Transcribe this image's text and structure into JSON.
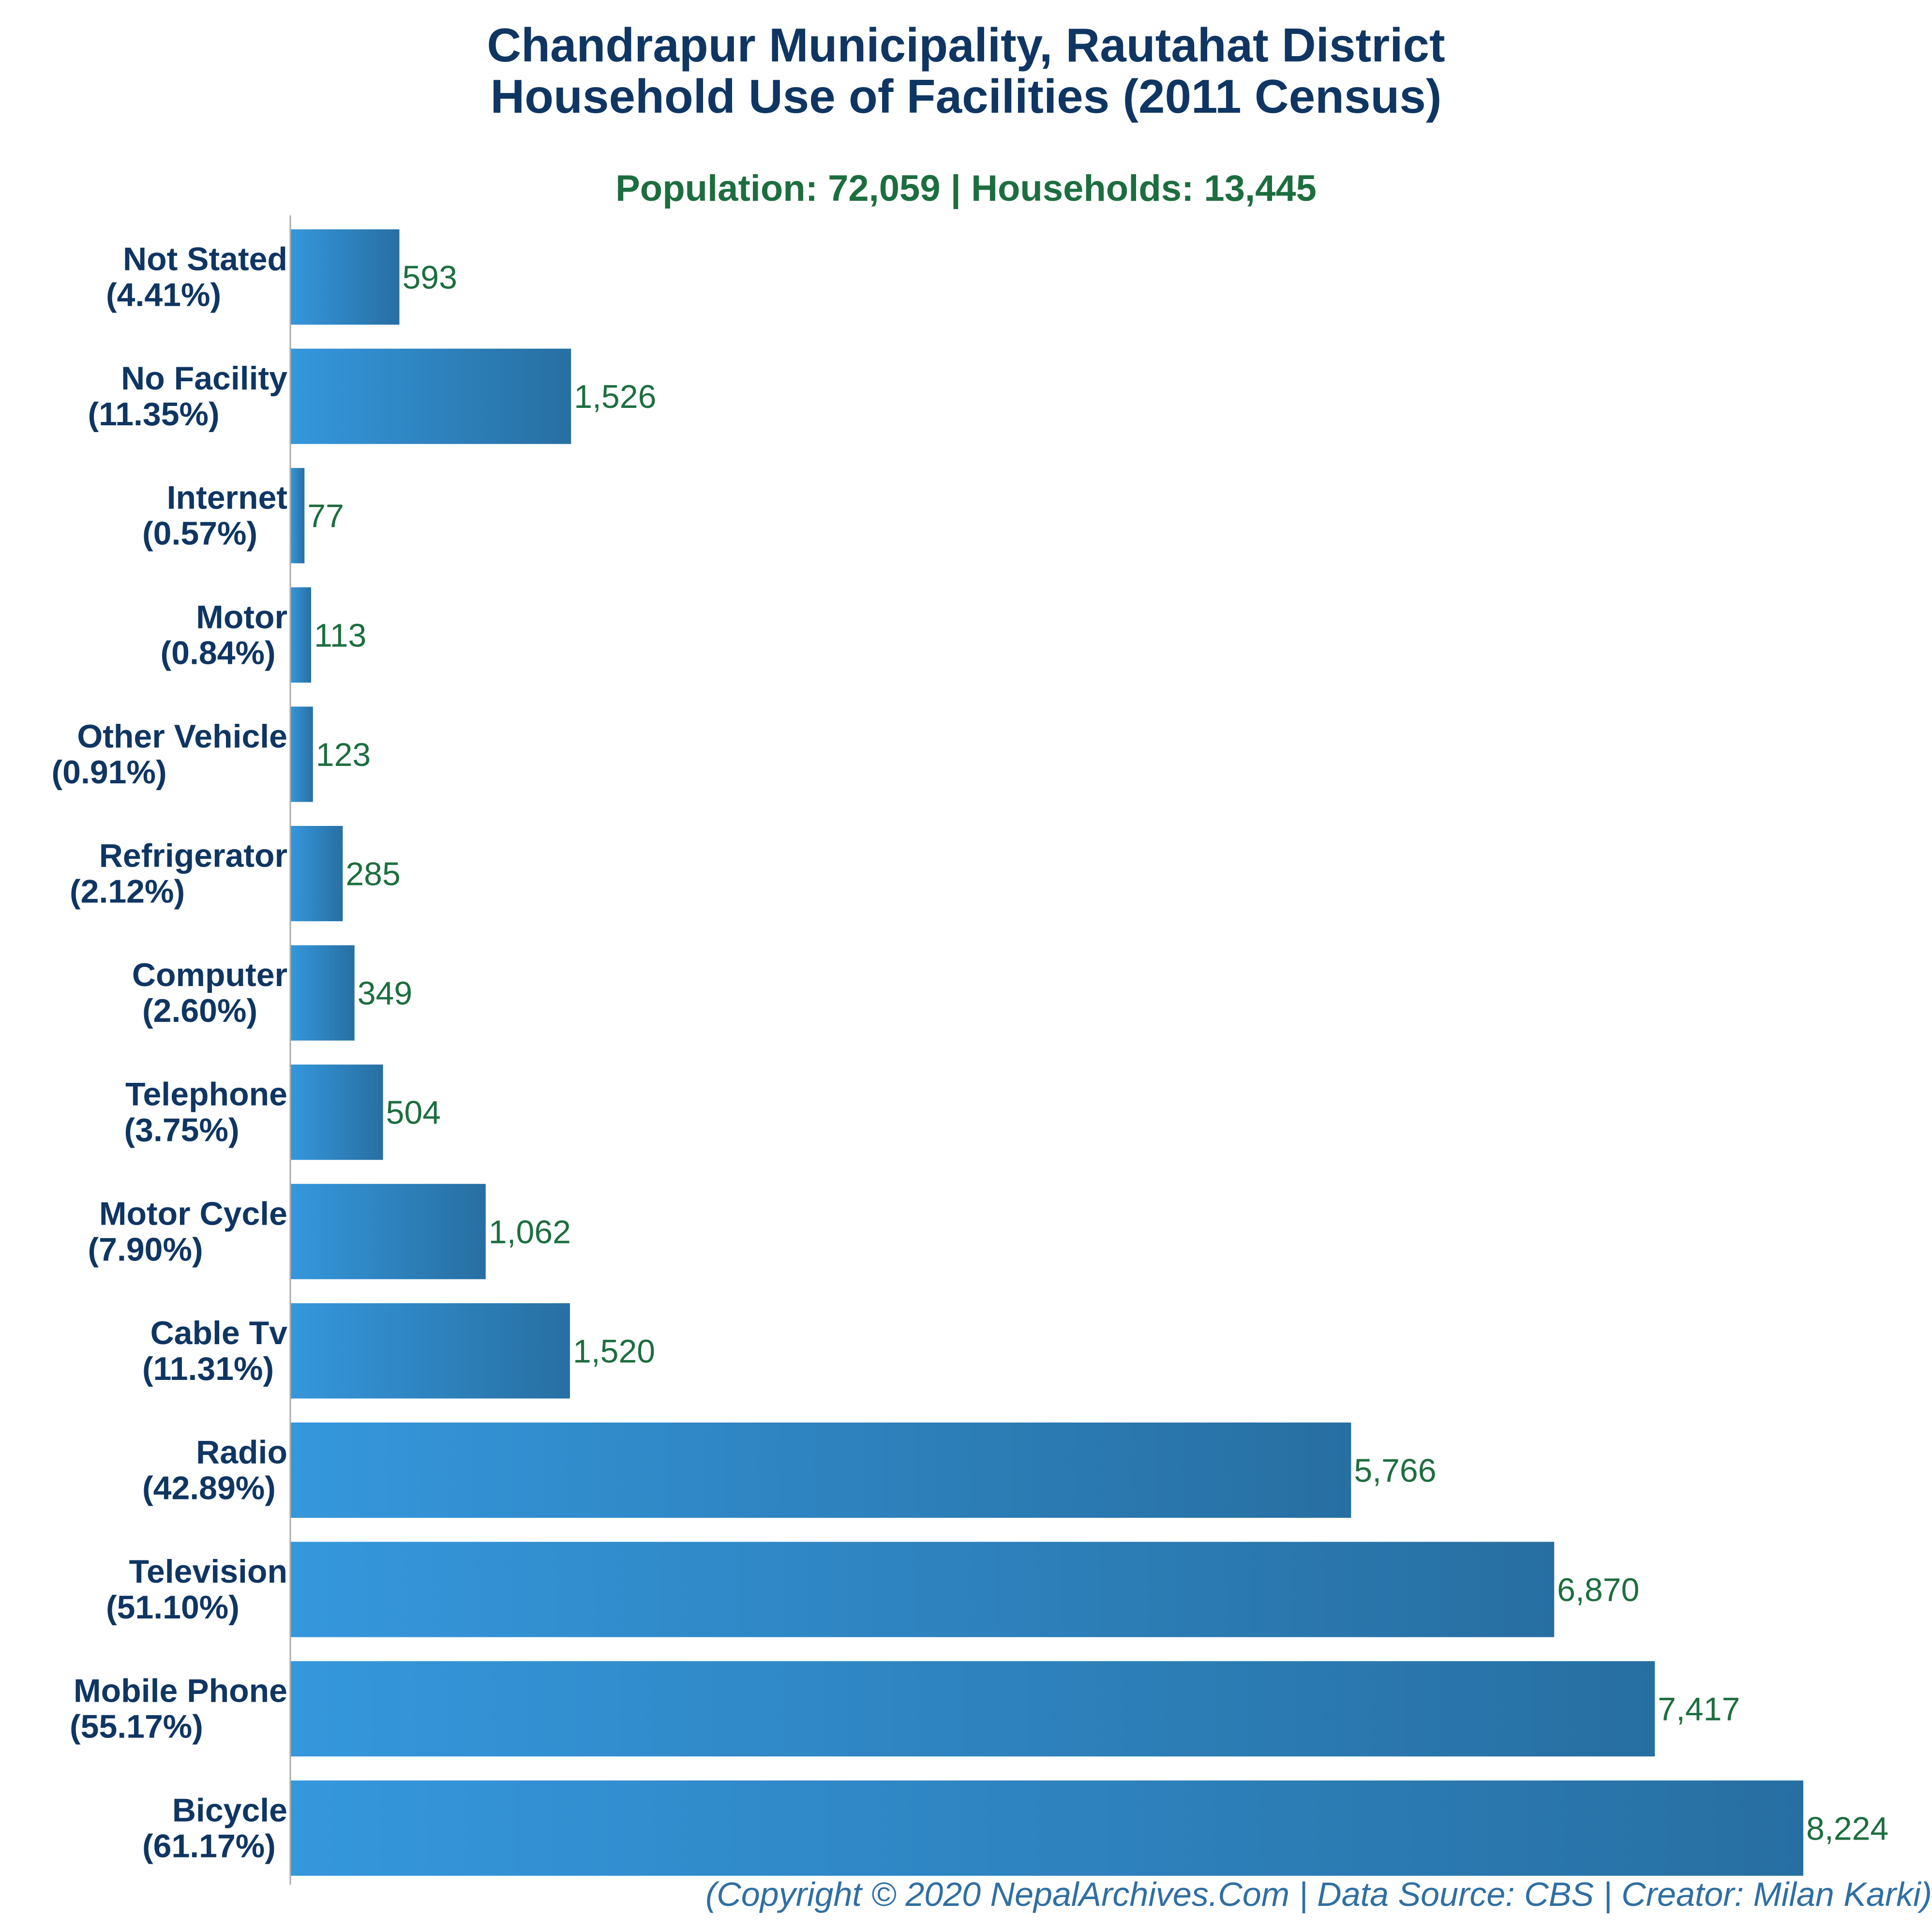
{
  "header": {
    "title_line1": "Chandrapur Municipality, Rautahat District",
    "title_line2": "Household Use of Facilities (2011 Census)",
    "subtitle": "Population: 72,059 | Households: 13,445"
  },
  "footer": {
    "credit": "(Copyright © 2020 NepalArchives.Com | Data Source: CBS | Creator: Milan Karki)"
  },
  "colors": {
    "bar_start": "#3597dc",
    "bar_end": "#276fa2",
    "title": "#0f3663",
    "value_label": "#1d6e3f",
    "axis": "#aaaaaa"
  },
  "chart_data": {
    "type": "bar",
    "orientation": "horizontal",
    "title": "Chandrapur Municipality, Rautahat District Household Use of Facilities (2011 Census)",
    "subtitle": "Population: 72,059 | Households: 13,445",
    "categories": [
      "Not Stated",
      "No Facility",
      "Internet",
      "Motor",
      "Other Vehicle",
      "Refrigerator",
      "Computer",
      "Telephone",
      "Motor Cycle",
      "Cable Tv",
      "Radio",
      "Television",
      "Mobile Phone",
      "Bicycle"
    ],
    "percent_labels": [
      "(4.41%)",
      "(11.35%)",
      "(0.57%)",
      "(0.84%)",
      "(0.91%)",
      "(2.12%)",
      "(2.60%)",
      "(3.75%)",
      "(7.90%)",
      "(11.31%)",
      "(42.89%)",
      "(51.10%)",
      "(55.17%)",
      "(61.17%)"
    ],
    "values": [
      593,
      1526,
      77,
      113,
      123,
      285,
      349,
      504,
      1062,
      1520,
      5766,
      6870,
      7417,
      8224
    ],
    "value_labels": [
      "593",
      "1,526",
      "77",
      "113",
      "123",
      "285",
      "349",
      "504",
      "1,062",
      "1,520",
      "5,766",
      "6,870",
      "7,417",
      "8,224"
    ],
    "xlim": [
      0,
      8224
    ],
    "grid": false,
    "legend": "none"
  }
}
